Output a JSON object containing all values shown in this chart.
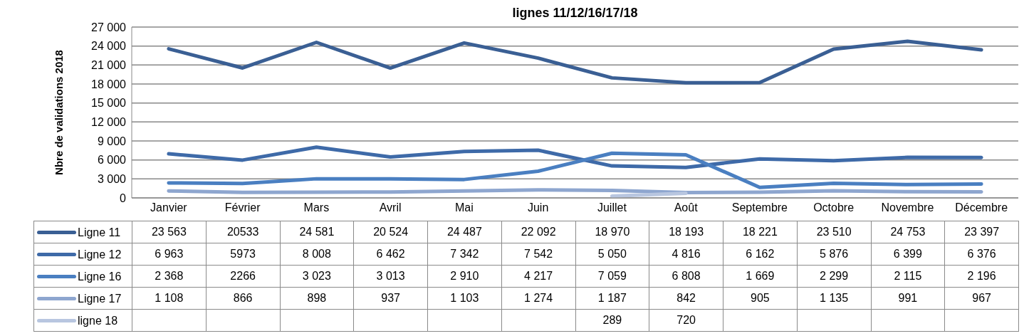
{
  "chart_data": {
    "type": "line",
    "title": "lignes 11/12/16/17/18",
    "ylabel": "Nbre de validations 2018",
    "categories": [
      "Janvier",
      "Février",
      "Mars",
      "Avril",
      "Mai",
      "Juin",
      "Juillet",
      "Août",
      "Septembre",
      "Octobre",
      "Novembre",
      "Décembre"
    ],
    "series": [
      {
        "name": "Ligne 11",
        "color": "#3a5f94",
        "values": [
          23563,
          20533,
          24581,
          20524,
          24487,
          22092,
          18970,
          18193,
          18221,
          23510,
          24753,
          23397
        ],
        "value_labels": [
          "23 563",
          "20533",
          "24 581",
          "20 524",
          "24 487",
          "22 092",
          "18 970",
          "18 193",
          "18 221",
          "23 510",
          "24 753",
          "23 397"
        ]
      },
      {
        "name": "Ligne 12",
        "color": "#3e6aa8",
        "values": [
          6963,
          5973,
          8008,
          6462,
          7342,
          7542,
          5050,
          4816,
          6162,
          5876,
          6399,
          6376
        ],
        "value_labels": [
          "6 963",
          "5973",
          "8 008",
          "6 462",
          "7 342",
          "7 542",
          "5 050",
          "4 816",
          "6 162",
          "5 876",
          "6 399",
          "6 376"
        ]
      },
      {
        "name": "Ligne 16",
        "color": "#4a7fc1",
        "values": [
          2368,
          2266,
          3023,
          3013,
          2910,
          4217,
          7059,
          6808,
          1669,
          2299,
          2115,
          2196
        ],
        "value_labels": [
          "2 368",
          "2266",
          "3 023",
          "3 013",
          "2 910",
          "4 217",
          "7 059",
          "6 808",
          "1 669",
          "2 299",
          "2 115",
          "2 196"
        ]
      },
      {
        "name": "Ligne 17",
        "color": "#8ea6cf",
        "values": [
          1108,
          866,
          898,
          937,
          1103,
          1274,
          1187,
          842,
          905,
          1135,
          991,
          967
        ],
        "value_labels": [
          "1 108",
          "866",
          "898",
          "937",
          "1 103",
          "1 274",
          "1 187",
          "842",
          "905",
          "1 135",
          "991",
          "967"
        ]
      },
      {
        "name": "ligne 18",
        "color": "#b8c6e0",
        "values": [
          null,
          null,
          null,
          null,
          null,
          null,
          289,
          720,
          null,
          null,
          null,
          null
        ],
        "value_labels": [
          null,
          null,
          null,
          null,
          null,
          null,
          "289",
          "720",
          null,
          null,
          null,
          null
        ]
      }
    ],
    "ylim": [
      0,
      27000
    ],
    "yticks": [
      0,
      {
        "value": 3000,
        "label": "3 000"
      },
      {
        "value": 6000,
        "label": "6 000"
      },
      {
        "value": 9000,
        "label": "9 000"
      },
      {
        "value": 12000,
        "label": "12 000"
      },
      {
        "value": 15000,
        "label": "15 000"
      },
      {
        "value": 18000,
        "label": "18 000"
      },
      {
        "value": 21000,
        "label": "21 000"
      },
      {
        "value": 24000,
        "label": "24 000"
      },
      {
        "value": 27000,
        "label": "27 000"
      }
    ],
    "grid": "y",
    "legend": "bottom",
    "marker": "none",
    "line_style": "solid"
  }
}
